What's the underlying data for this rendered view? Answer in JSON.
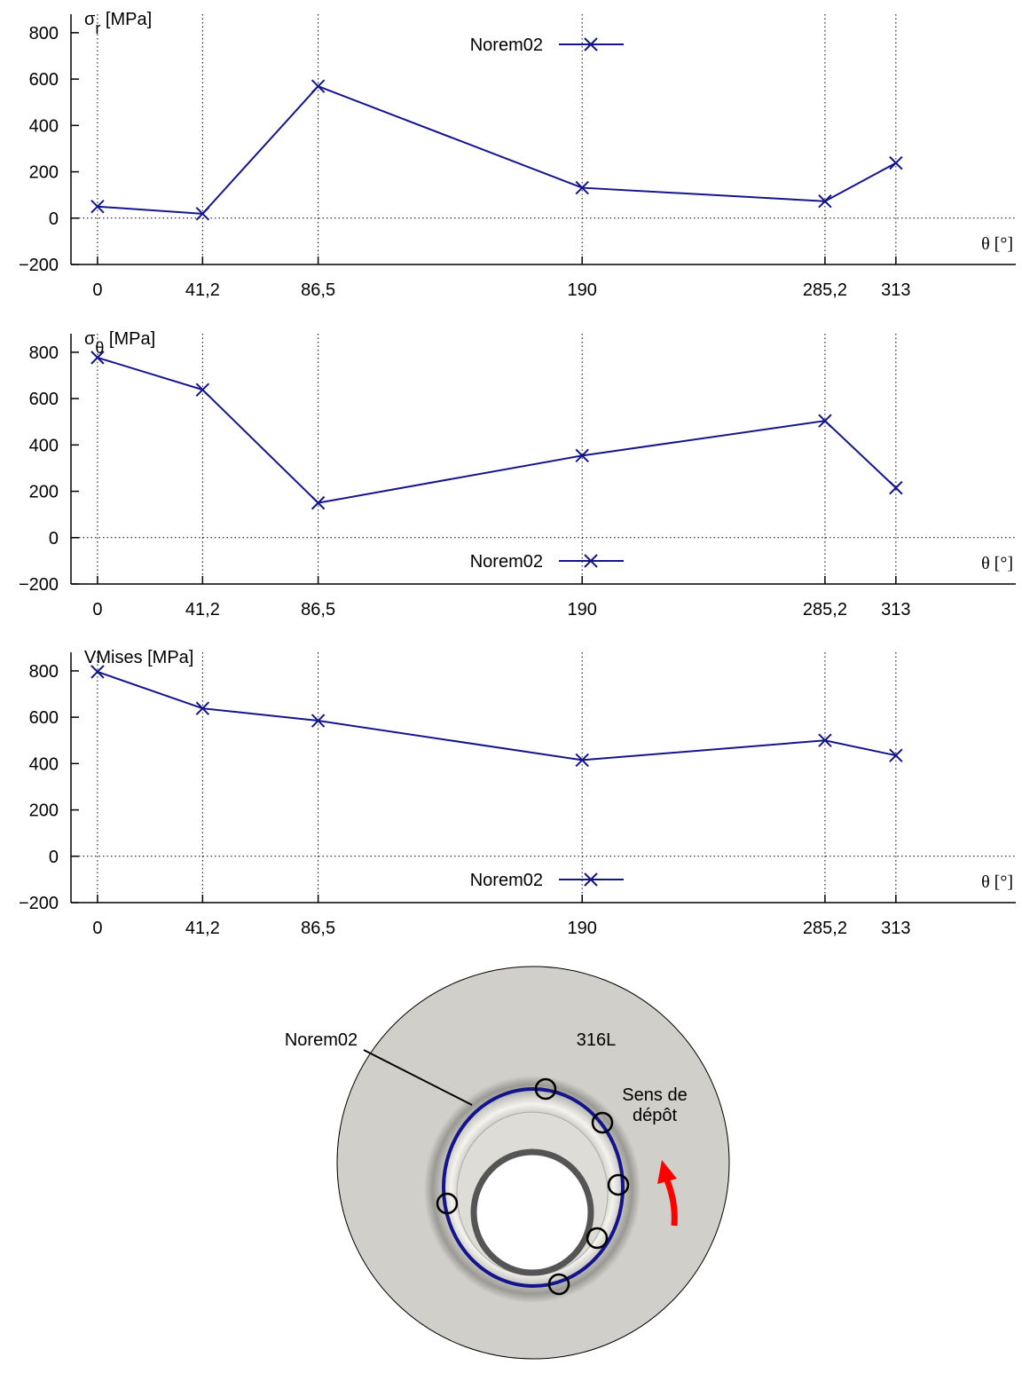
{
  "chart_data": [
    {
      "type": "line",
      "ylabel": [
        {
          "text": "σ"
        },
        {
          "text": "r",
          "sub": true
        },
        {
          "text": " [MPa]"
        }
      ],
      "xlabel": "θ [°]",
      "x": [
        0,
        41.2,
        86.5,
        190,
        285.2,
        313
      ],
      "series": [
        {
          "name": "Norem02",
          "color": "#14148c",
          "marker": "x",
          "values": [
            50,
            19,
            569,
            131,
            73,
            238
          ]
        }
      ],
      "xlim": [
        -10.4,
        360
      ],
      "ylim": [
        -200,
        880
      ],
      "xticks": [
        0,
        {
          "value": 41.2,
          "label": "41,2"
        },
        {
          "value": 86.5,
          "label": "86,5"
        },
        190,
        {
          "value": 285.2,
          "label": "285,2"
        },
        313
      ],
      "yticks": [
        {
          "value": -200,
          "label": "−200"
        },
        0,
        200,
        400,
        600,
        800
      ],
      "grid": "x",
      "zero_line": true,
      "legend": "top-center"
    },
    {
      "type": "line",
      "ylabel": [
        {
          "text": "σ"
        },
        {
          "text": "θ",
          "sub": true
        },
        {
          "text": " [MPa]"
        }
      ],
      "xlabel": "θ [°]",
      "x": [
        0,
        41.2,
        86.5,
        190,
        285.2,
        313
      ],
      "series": [
        {
          "name": "Norem02",
          "color": "#14148c",
          "marker": "x",
          "values": [
            777,
            638,
            150,
            354,
            504,
            215
          ]
        }
      ],
      "xlim": [
        -10.4,
        360
      ],
      "ylim": [
        -200,
        880
      ],
      "xticks": [
        0,
        {
          "value": 41.2,
          "label": "41,2"
        },
        {
          "value": 86.5,
          "label": "86,5"
        },
        190,
        {
          "value": 285.2,
          "label": "285,2"
        },
        313
      ],
      "yticks": [
        {
          "value": -200,
          "label": "−200"
        },
        0,
        200,
        400,
        600,
        800
      ],
      "grid": "x",
      "zero_line": true,
      "legend": "bottom-center"
    },
    {
      "type": "line",
      "ylabel": [
        {
          "text": "VMises [MPa]"
        }
      ],
      "xlabel": "θ [°]",
      "x": [
        0,
        41.2,
        86.5,
        190,
        285.2,
        313
      ],
      "series": [
        {
          "name": "Norem02",
          "color": "#14148c",
          "marker": "x",
          "values": [
            796,
            638,
            585,
            415,
            500,
            435
          ]
        }
      ],
      "xlim": [
        -10.4,
        360
      ],
      "ylim": [
        -200,
        880
      ],
      "xticks": [
        0,
        {
          "value": 41.2,
          "label": "41,2"
        },
        {
          "value": 86.5,
          "label": "86,5"
        },
        190,
        {
          "value": 285.2,
          "label": "285,2"
        },
        313
      ],
      "yticks": [
        {
          "value": -200,
          "label": "−200"
        },
        0,
        200,
        400,
        600,
        800
      ],
      "grid": "x",
      "zero_line": true,
      "legend": "bottom-center"
    }
  ],
  "diagram": {
    "labels": [
      "316L",
      "Norem02",
      "Sens de",
      "dépôt"
    ]
  }
}
